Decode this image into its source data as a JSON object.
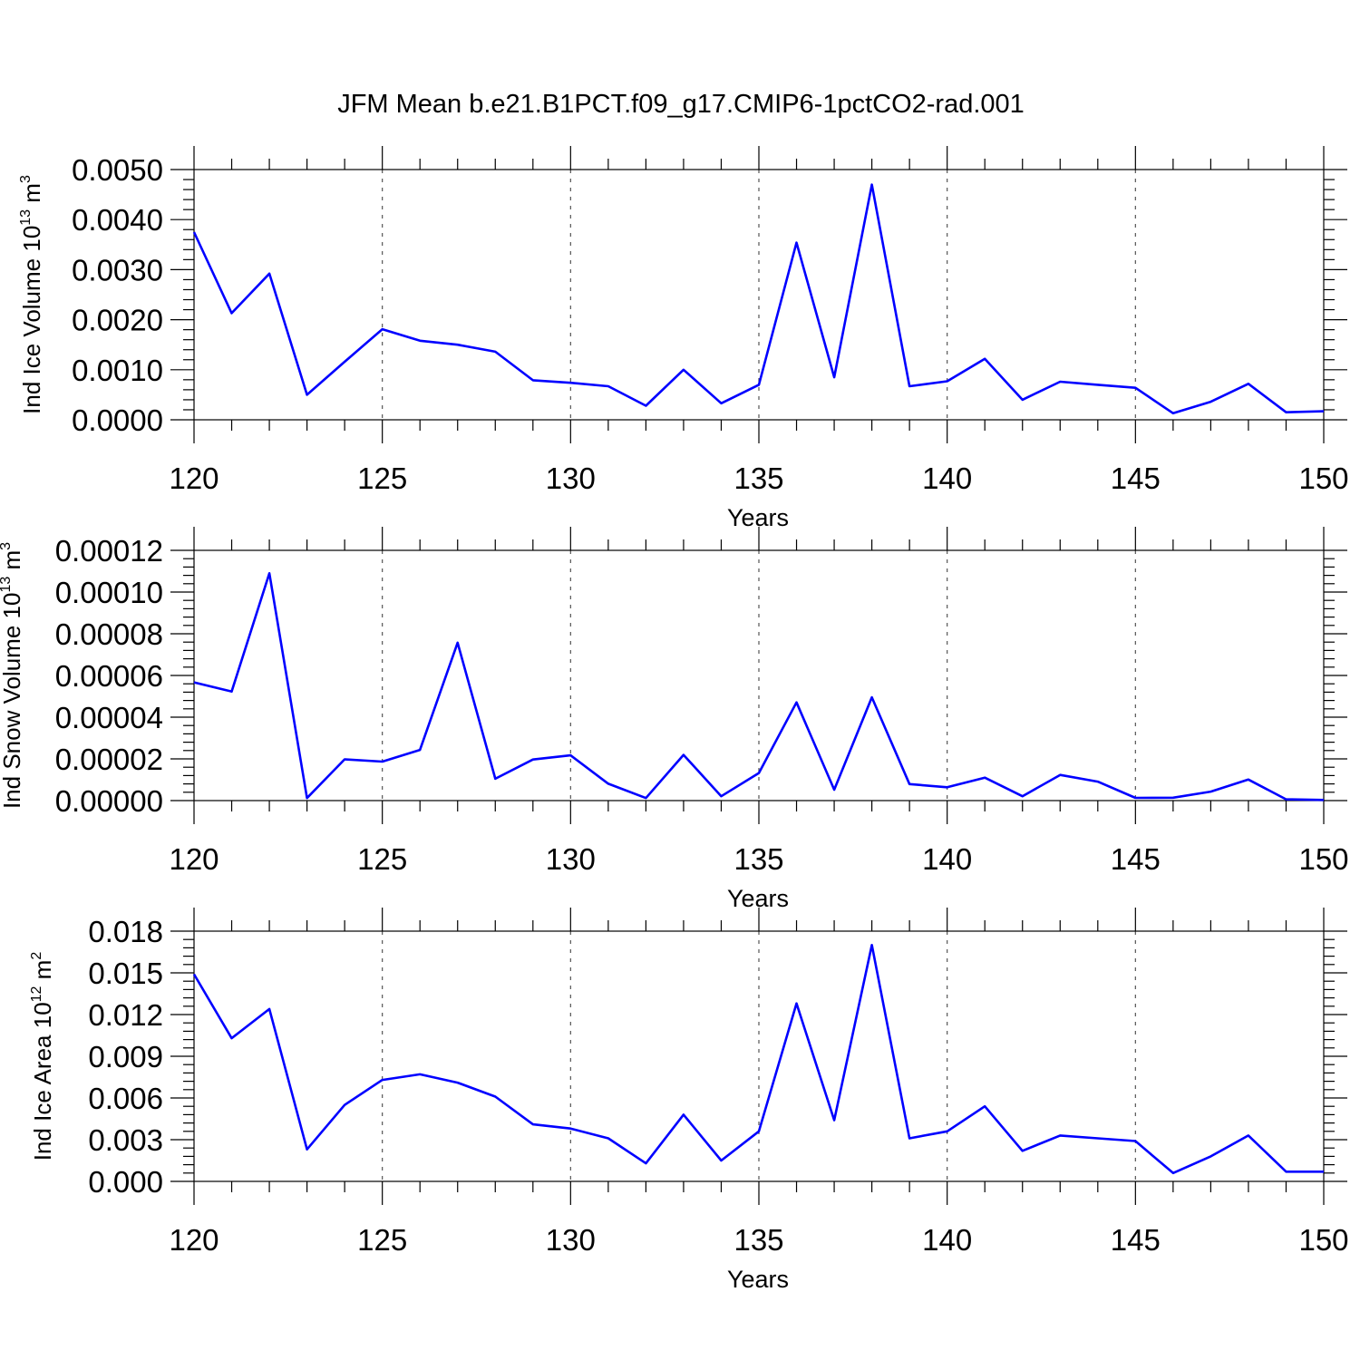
{
  "figure_title": "JFM Mean b.e21.B1PCT.f09_g17.CMIP6-1pctCO2-rad.001",
  "colors": {
    "series": "#0000ff",
    "axis": "#000000",
    "grid": "#555555"
  },
  "chart_data": [
    {
      "type": "line",
      "xlabel": "Years",
      "ylabel_main": "Ind Ice Volume 10",
      "ylabel_exp1": "13",
      "ylabel_unit": " m",
      "ylabel_exp2": "3",
      "xlim": [
        120,
        150
      ],
      "ylim": [
        0,
        0.005
      ],
      "xticks": [
        120,
        125,
        130,
        135,
        140,
        145,
        150
      ],
      "xtick_labels": [
        "120",
        "125",
        "130",
        "135",
        "140",
        "145",
        "150"
      ],
      "yticks": [
        0,
        0.001,
        0.002,
        0.003,
        0.004,
        0.005
      ],
      "ytick_labels": [
        "0.0000",
        "0.0010",
        "0.0020",
        "0.0030",
        "0.0040",
        "0.0050"
      ],
      "x": [
        120,
        121,
        122,
        123,
        124,
        125,
        126,
        127,
        128,
        129,
        130,
        131,
        132,
        133,
        134,
        135,
        136,
        137,
        138,
        139,
        140,
        141,
        142,
        143,
        144,
        145,
        146,
        147,
        148,
        149,
        150
      ],
      "values": [
        0.00375,
        0.00213,
        0.00292,
        0.0005,
        0.00116,
        0.00181,
        0.00158,
        0.0015,
        0.00136,
        0.00079,
        0.00074,
        0.00067,
        0.00028,
        0.001,
        0.00033,
        0.0007,
        0.00354,
        0.00085,
        0.0047,
        0.00067,
        0.00077,
        0.00122,
        0.0004,
        0.00076,
        0.0007,
        0.00064,
        0.00013,
        0.00036,
        0.00072,
        0.00015,
        0.00017
      ]
    },
    {
      "type": "line",
      "xlabel": "Years",
      "ylabel_main": "Ind Snow Volume 10",
      "ylabel_exp1": "13",
      "ylabel_unit": " m",
      "ylabel_exp2": "3",
      "xlim": [
        120,
        150
      ],
      "ylim": [
        0,
        0.00012
      ],
      "xticks": [
        120,
        125,
        130,
        135,
        140,
        145,
        150
      ],
      "xtick_labels": [
        "120",
        "125",
        "130",
        "135",
        "140",
        "145",
        "150"
      ],
      "yticks": [
        0,
        2e-05,
        4e-05,
        6e-05,
        8e-05,
        0.0001,
        0.00012
      ],
      "ytick_labels": [
        "0.00000",
        "0.00002",
        "0.00004",
        "0.00006",
        "0.00008",
        "0.00010",
        "0.00012"
      ],
      "x": [
        120,
        121,
        122,
        123,
        124,
        125,
        126,
        127,
        128,
        129,
        130,
        131,
        132,
        133,
        134,
        135,
        136,
        137,
        138,
        139,
        140,
        141,
        142,
        143,
        144,
        145,
        146,
        147,
        148,
        149,
        150
      ],
      "values": [
        5.67e-05,
        5.23e-05,
        0.000109,
        1.2e-06,
        1.98e-05,
        1.87e-05,
        2.43e-05,
        7.57e-05,
        1.05e-05,
        1.97e-05,
        2.17e-05,
        8.1e-06,
        1.2e-06,
        2.19e-05,
        2.1e-06,
        1.32e-05,
        4.71e-05,
        5.2e-06,
        4.95e-05,
        7.9e-06,
        6.4e-06,
        1.1e-05,
        2.1e-06,
        1.23e-05,
        9.1e-06,
        1.3e-06,
        1.4e-06,
        4.3e-06,
        1.01e-05,
        6e-07,
        3e-07
      ]
    },
    {
      "type": "line",
      "xlabel": "Years",
      "ylabel_main": "Ind Ice Area 10",
      "ylabel_exp1": "12",
      "ylabel_unit": " m",
      "ylabel_exp2": "2",
      "xlim": [
        120,
        150
      ],
      "ylim": [
        0,
        0.018
      ],
      "xticks": [
        120,
        125,
        130,
        135,
        140,
        145,
        150
      ],
      "xtick_labels": [
        "120",
        "125",
        "130",
        "135",
        "140",
        "145",
        "150"
      ],
      "yticks": [
        0,
        0.003,
        0.006,
        0.009,
        0.012,
        0.015,
        0.018
      ],
      "ytick_labels": [
        "0.000",
        "0.003",
        "0.006",
        "0.009",
        "0.012",
        "0.015",
        "0.018"
      ],
      "x": [
        120,
        121,
        122,
        123,
        124,
        125,
        126,
        127,
        128,
        129,
        130,
        131,
        132,
        133,
        134,
        135,
        136,
        137,
        138,
        139,
        140,
        141,
        142,
        143,
        144,
        145,
        146,
        147,
        148,
        149,
        150
      ],
      "values": [
        0.0149,
        0.0103,
        0.0124,
        0.0023,
        0.0055,
        0.0073,
        0.0077,
        0.0071,
        0.0061,
        0.0041,
        0.0038,
        0.0031,
        0.0013,
        0.0048,
        0.0015,
        0.0036,
        0.0128,
        0.0044,
        0.017,
        0.0031,
        0.0036,
        0.0054,
        0.0022,
        0.0033,
        0.0031,
        0.0029,
        0.0006,
        0.0018,
        0.0033,
        0.0007,
        0.0007
      ]
    }
  ]
}
